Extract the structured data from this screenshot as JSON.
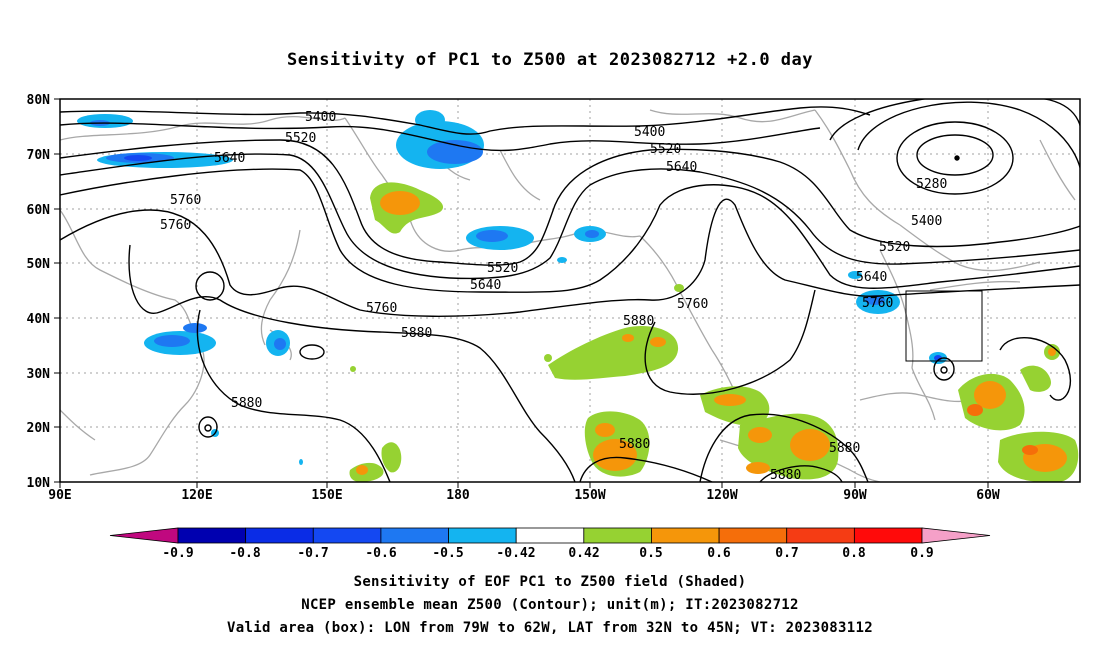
{
  "title": "Sensitivity of PC1 to Z500 at 2023082712 +2.0 day",
  "map": {
    "lat_labels": [
      "80N",
      "70N",
      "60N",
      "50N",
      "40N",
      "30N",
      "20N",
      "10N"
    ],
    "lon_labels": [
      "90E",
      "120E",
      "150E",
      "180",
      "150W",
      "120W",
      "90W",
      "60W"
    ],
    "contour_levels": [
      "5280",
      "5400",
      "5520",
      "5640",
      "5760",
      "5880"
    ],
    "contour_labels": [
      {
        "text": "5400"
      },
      {
        "text": "5520"
      },
      {
        "text": "5640"
      },
      {
        "text": "5760"
      },
      {
        "text": "5760"
      },
      {
        "text": "5880"
      },
      {
        "text": "5880"
      },
      {
        "text": "5520"
      },
      {
        "text": "5640"
      },
      {
        "text": "5760"
      },
      {
        "text": "5400"
      },
      {
        "text": "5520"
      },
      {
        "text": "5640"
      },
      {
        "text": "5880"
      },
      {
        "text": "5880"
      },
      {
        "text": "5280"
      },
      {
        "text": "5400"
      },
      {
        "text": "5520"
      },
      {
        "text": "5640"
      },
      {
        "text": "5760"
      },
      {
        "text": "5880"
      },
      {
        "text": "5880"
      },
      {
        "text": "5760"
      }
    ],
    "valid_box": {
      "lon_from": "79W",
      "lon_to": "62W",
      "lat_from": "32N",
      "lat_to": "45N"
    }
  },
  "colorbar": {
    "labels": [
      "-0.9",
      "-0.8",
      "-0.7",
      "-0.6",
      "-0.5",
      "-0.42",
      "0.42",
      "0.5",
      "0.6",
      "0.7",
      "0.8",
      "0.9"
    ],
    "colors": [
      "#c0087f",
      "#0000b0",
      "#0a2ce6",
      "#1448f2",
      "#1e78f2",
      "#14b4f0",
      "#ffffff",
      "#96d232",
      "#f5960a",
      "#f56e0a",
      "#f53c14",
      "#ff0a0a",
      "#f5a0c8"
    ]
  },
  "footer": {
    "line1": "Sensitivity of EOF PC1 to Z500 field (Shaded)",
    "line2": "NCEP ensemble mean Z500 (Contour); unit(m); IT:2023082712",
    "line3": "Valid area (box): LON from 79W to 62W, LAT from 32N to 45N; VT: 2023083112"
  }
}
